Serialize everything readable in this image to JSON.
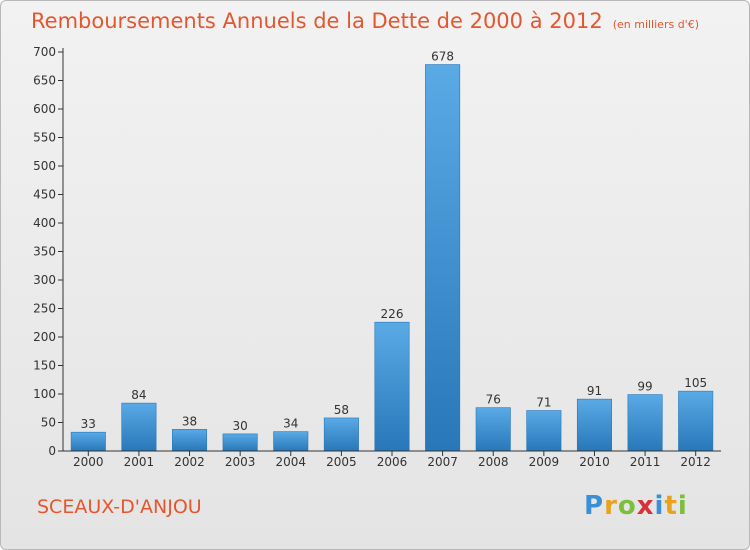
{
  "title": "Remboursements Annuels de la Dette de 2000 à 2012",
  "subtitle": "(en milliers d'€)",
  "city": "SCEAUX-D'ANJOU",
  "logo": {
    "letters": [
      "P",
      "r",
      "o",
      "x",
      "i",
      "t",
      "i"
    ],
    "colors": [
      "#3a8fd6",
      "#e8a21b",
      "#7bbf3a",
      "#d6323a",
      "#3a8fd6",
      "#e8a21b",
      "#7bbf3a"
    ]
  },
  "colors": {
    "bar_light": "#5aaae6",
    "bar_dark": "#2877b8",
    "accent": "#e4572e",
    "axis": "#333333",
    "grid": "#cccccc"
  },
  "chart_data": {
    "type": "bar",
    "title": "Remboursements Annuels de la Dette de 2000 à 2012",
    "subtitle": "(en milliers d'€)",
    "xlabel": "",
    "ylabel": "",
    "categories": [
      "2000",
      "2001",
      "2002",
      "2003",
      "2004",
      "2005",
      "2006",
      "2007",
      "2008",
      "2009",
      "2010",
      "2011",
      "2012"
    ],
    "values": [
      33,
      84,
      38,
      30,
      34,
      58,
      226,
      678,
      76,
      71,
      91,
      99,
      105
    ],
    "ylim": [
      0,
      700
    ],
    "yticks": [
      0,
      50,
      100,
      150,
      200,
      250,
      300,
      350,
      400,
      450,
      500,
      550,
      600,
      650,
      700
    ],
    "grid": false,
    "legend": "none"
  }
}
